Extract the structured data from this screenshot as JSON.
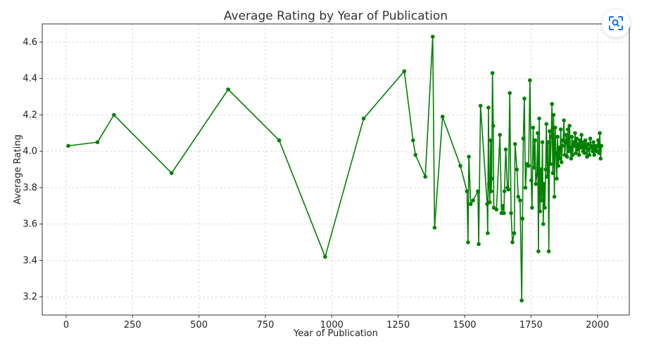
{
  "chart_data": {
    "type": "line",
    "title": "Average Rating by Year of Publication",
    "xlabel": "Year of Publication",
    "ylabel": "Average Rating",
    "xlim": [
      -90,
      2120
    ],
    "ylim": [
      3.1,
      4.7
    ],
    "xticks": [
      0,
      250,
      500,
      750,
      1000,
      1250,
      1500,
      1750,
      2000
    ],
    "yticks": [
      3.2,
      3.4,
      3.6,
      3.8,
      4.0,
      4.2,
      4.4,
      4.6
    ],
    "grid": true,
    "line_color": "#008000",
    "series": [
      {
        "x": [
          8,
          118,
          180,
          397,
          610,
          802,
          975,
          1120,
          1273,
          1306,
          1315,
          1352,
          1380,
          1387,
          1417,
          1484,
          1509,
          1513,
          1516,
          1523,
          1532,
          1550,
          1553,
          1560,
          1585,
          1587,
          1590,
          1592,
          1595,
          1598,
          1600,
          1602,
          1605,
          1608,
          1610,
          1620,
          1633,
          1639,
          1643,
          1648,
          1650,
          1655,
          1661,
          1665,
          1670,
          1675,
          1680,
          1687,
          1690,
          1697,
          1702,
          1709,
          1715,
          1718,
          1721,
          1725,
          1729,
          1734,
          1741,
          1746,
          1751,
          1754,
          1758,
          1762,
          1765,
          1768,
          1772,
          1775,
          1778,
          1781,
          1784,
          1787,
          1790,
          1793,
          1796,
          1799,
          1802,
          1805,
          1808,
          1811,
          1814,
          1817,
          1820,
          1823,
          1826,
          1829,
          1832,
          1835,
          1838,
          1841,
          1844,
          1847,
          1850,
          1853,
          1856,
          1859,
          1862,
          1865,
          1868,
          1871,
          1874,
          1877,
          1880,
          1883,
          1886,
          1889,
          1892,
          1895,
          1898,
          1901,
          1904,
          1907,
          1910,
          1913,
          1916,
          1919,
          1922,
          1925,
          1928,
          1931,
          1934,
          1937,
          1940,
          1943,
          1946,
          1949,
          1952,
          1955,
          1958,
          1961,
          1964,
          1967,
          1970,
          1973,
          1976,
          1979,
          1982,
          1985,
          1988,
          1991,
          1994,
          1997,
          2000,
          2003,
          2006,
          2009,
          2012,
          2015
        ],
        "values": [
          4.03,
          4.05,
          4.2,
          3.88,
          4.34,
          4.06,
          3.42,
          4.18,
          4.44,
          4.06,
          3.98,
          3.86,
          4.63,
          3.58,
          4.19,
          3.92,
          3.78,
          3.5,
          3.97,
          3.71,
          3.73,
          3.78,
          3.49,
          4.25,
          3.71,
          3.55,
          4.24,
          3.82,
          3.72,
          4.06,
          3.78,
          3.85,
          4.43,
          4.14,
          3.69,
          3.68,
          4.09,
          3.66,
          3.7,
          3.66,
          3.78,
          4.01,
          3.8,
          3.79,
          4.32,
          3.66,
          3.5,
          3.55,
          4.04,
          3.9,
          3.75,
          3.73,
          3.18,
          3.63,
          4.07,
          4.29,
          3.8,
          3.93,
          3.92,
          4.39,
          3.84,
          3.69,
          4.13,
          3.91,
          4.06,
          3.82,
          3.87,
          4.1,
          3.45,
          4.18,
          3.67,
          3.9,
          3.73,
          4.05,
          3.6,
          3.82,
          3.69,
          3.9,
          4.15,
          3.86,
          4.05,
          3.45,
          4.11,
          3.93,
          4.08,
          4.26,
          3.88,
          4.2,
          3.75,
          4.13,
          3.99,
          3.85,
          4.08,
          3.92,
          4.02,
          3.96,
          4.12,
          3.94,
          4.03,
          4.06,
          4.17,
          3.98,
          4.05,
          4.09,
          3.97,
          4.12,
          4.0,
          4.14,
          4.02,
          3.96,
          4.08,
          3.98,
          4.05,
          4.03,
          4.1,
          3.99,
          4.07,
          4.01,
          4.04,
          3.98,
          4.06,
          4.02,
          4.09,
          4.03,
          4.0,
          4.05,
          3.99,
          4.06,
          4.02,
          3.97,
          4.04,
          4.01,
          3.98,
          4.07,
          4.03,
          4.02,
          4.0,
          4.05,
          3.98,
          4.03,
          4.01,
          4.0,
          4.03,
          4.06,
          3.99,
          4.1,
          3.96,
          4.03
        ]
      }
    ]
  },
  "icons": {
    "scan_button": "scan-icon"
  }
}
